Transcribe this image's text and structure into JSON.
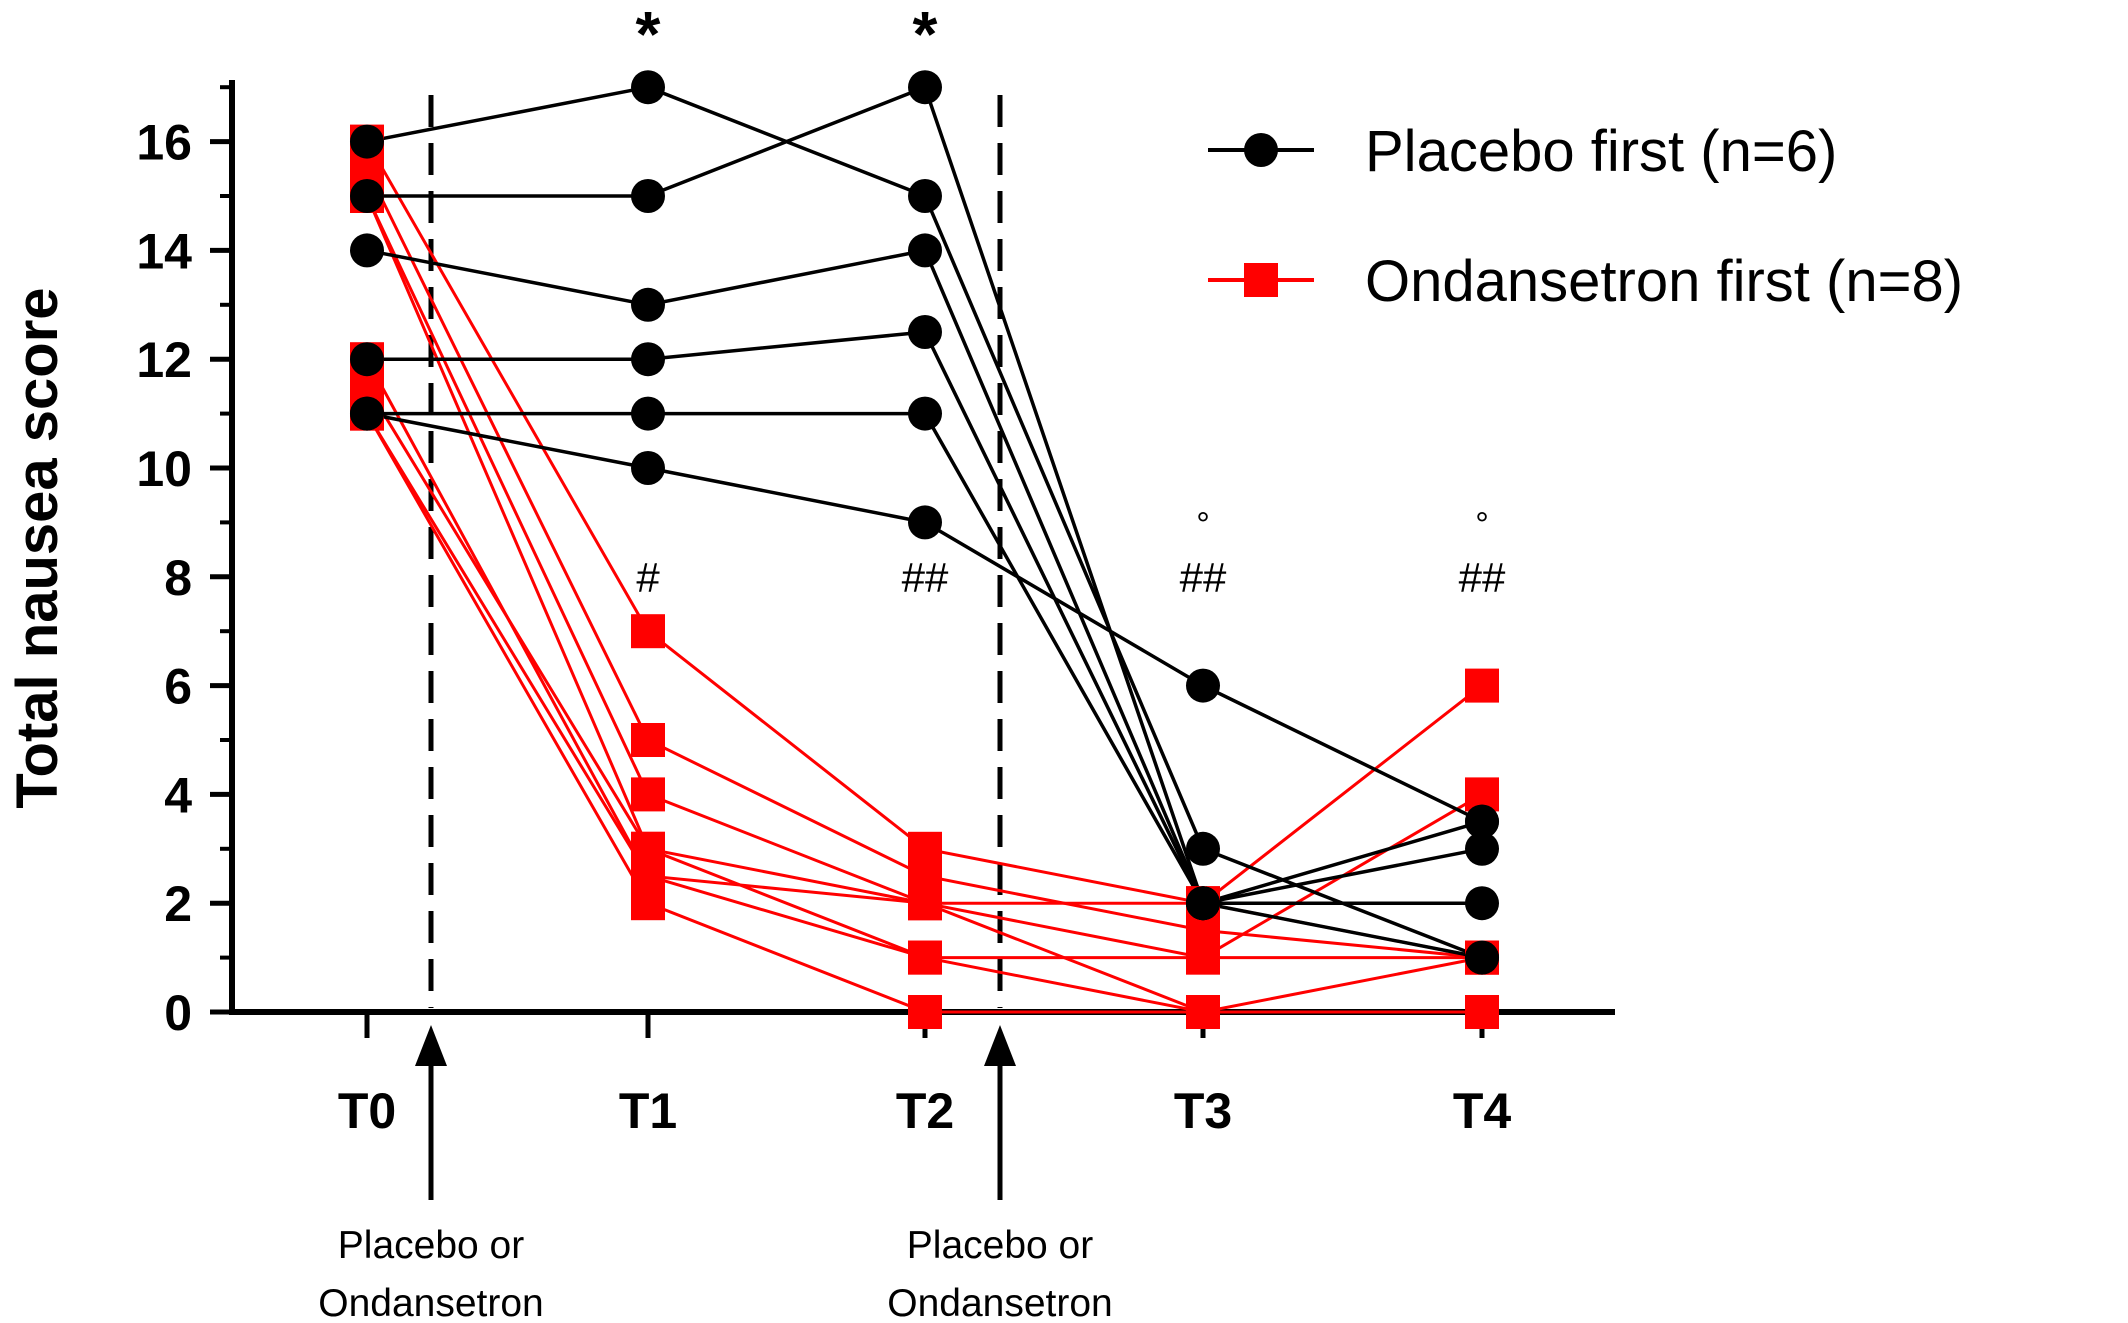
{
  "chart_data": {
    "type": "line",
    "ylabel": "Total nausea score",
    "xlabel": "",
    "ylim": [
      0,
      17
    ],
    "yticks": [
      0,
      2,
      4,
      6,
      8,
      10,
      12,
      14,
      16
    ],
    "categories": [
      "T0",
      "T1",
      "T2",
      "T3",
      "T4"
    ],
    "colors": {
      "placebo": "#000000",
      "ondansetron": "#ff0000"
    },
    "groups": [
      {
        "name": "Placebo first (n=6)",
        "marker": "circle",
        "color": "#000000",
        "subjects": [
          [
            16,
            17,
            15,
            3,
            1
          ],
          [
            15,
            15,
            17,
            2,
            3
          ],
          [
            14,
            13,
            14,
            2,
            2
          ],
          [
            12,
            12,
            12.5,
            2,
            1
          ],
          [
            11,
            11,
            11,
            2,
            3.5
          ],
          [
            11,
            10,
            9,
            6,
            3.5
          ]
        ]
      },
      {
        "name": "Ondansetron first (n=8)",
        "marker": "square",
        "color": "#ff0000",
        "subjects": [
          [
            16,
            7,
            3,
            2,
            1
          ],
          [
            15.5,
            5,
            2.5,
            1.5,
            1
          ],
          [
            15,
            4,
            2,
            1,
            1
          ],
          [
            15,
            3,
            2,
            0,
            0
          ],
          [
            12,
            2.5,
            2,
            2,
            6
          ],
          [
            11.5,
            3,
            1,
            1,
            4
          ],
          [
            11,
            2.5,
            1,
            0,
            0
          ],
          [
            11,
            2,
            0,
            0,
            1
          ]
        ]
      }
    ],
    "interventions": [
      {
        "after": "T0",
        "label_line1": "Placebo or",
        "label_line2": "Ondansetron"
      },
      {
        "after": "T2",
        "label_line1": "Placebo or",
        "label_line2": "Ondansetron"
      }
    ],
    "annotations": {
      "star": [
        {
          "at": "T1",
          "text": "*"
        },
        {
          "at": "T2",
          "text": "*"
        }
      ],
      "hash": [
        {
          "at": "T1",
          "text": "#",
          "y": 8
        },
        {
          "at": "T2",
          "text": "##",
          "y": 8
        },
        {
          "at": "T3",
          "text": "##",
          "y": 8
        },
        {
          "at": "T4",
          "text": "##",
          "y": 8
        }
      ],
      "circle": [
        {
          "at": "T3",
          "text": "°",
          "y": 9.3
        },
        {
          "at": "T4",
          "text": "°",
          "y": 9.3
        }
      ]
    }
  }
}
